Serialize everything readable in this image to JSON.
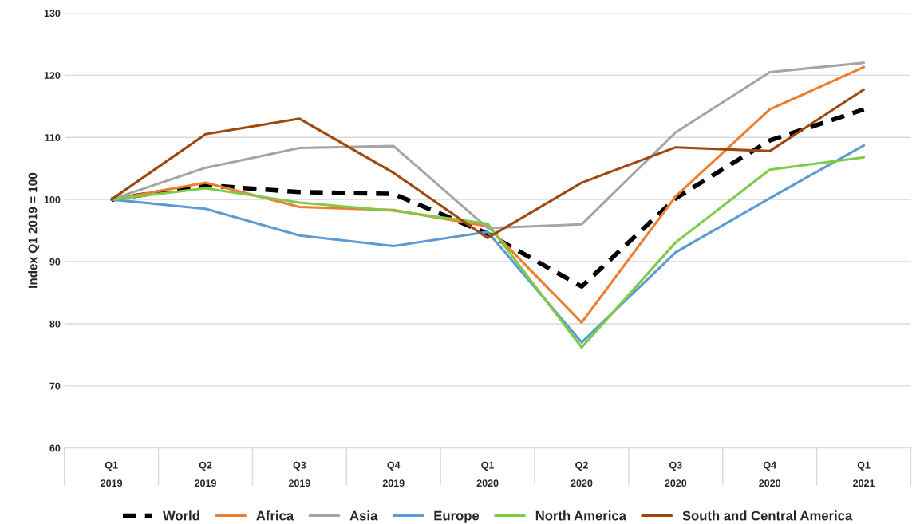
{
  "chart_data": {
    "type": "line",
    "ylabel": "Index Q1 2019 = 100",
    "categories": [
      "Q1\n2019",
      "Q2\n2019",
      "Q3\n2019",
      "Q4\n2019",
      "Q1\n2020",
      "Q2\n2020",
      "Q3\n2020",
      "Q4\n2020",
      "Q1\n2021"
    ],
    "series": [
      {
        "name": "World",
        "color": "#000000",
        "line_style": "dashed",
        "values": [
          100,
          102.3,
          101.2,
          100.9,
          94.5,
          86,
          100.2,
          109.5,
          114.5
        ]
      },
      {
        "name": "Africa",
        "color": "#ed7d31",
        "values": [
          100,
          102.7,
          98.8,
          98.3,
          95.7,
          80.2,
          100.5,
          114.5,
          121.3
        ]
      },
      {
        "name": "Asia",
        "color": "#a5a5a5",
        "values": [
          100,
          105.1,
          108.3,
          108.6,
          95.4,
          96,
          110.8,
          120.5,
          122
        ]
      },
      {
        "name": "Europe",
        "color": "#5b9bd5",
        "values": [
          100,
          98.5,
          94.2,
          92.5,
          94.8,
          77,
          91.5,
          100.2,
          108.7
        ]
      },
      {
        "name": "North America",
        "color": "#7ecb48",
        "values": [
          100,
          101.8,
          99.5,
          98.2,
          96.1,
          76.2,
          93.1,
          104.8,
          106.8
        ]
      },
      {
        "name": "South and Central America",
        "color": "#9e480e",
        "values": [
          100,
          110.5,
          113,
          104.3,
          93.8,
          102.7,
          108.4,
          107.8,
          117.7
        ]
      }
    ],
    "ylim": [
      60,
      130
    ],
    "yticks": [
      60,
      70,
      80,
      90,
      100,
      110,
      120,
      130
    ],
    "grid": "y",
    "legend": "bottom",
    "line_style": "solid",
    "marker": "none"
  }
}
